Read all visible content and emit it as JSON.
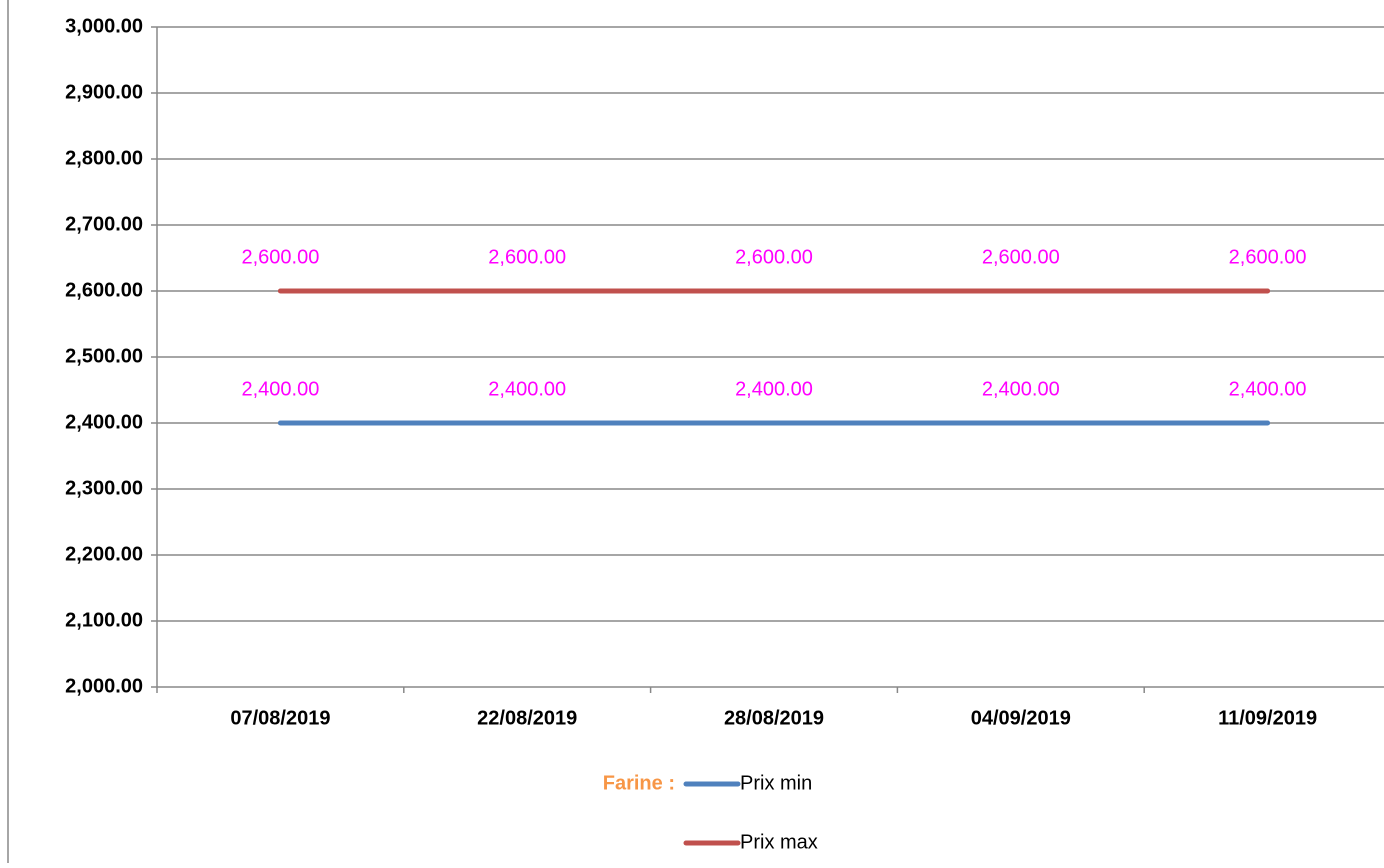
{
  "chart_data": {
    "type": "line",
    "categories": [
      "07/08/2019",
      "22/08/2019",
      "28/08/2019",
      "04/09/2019",
      "11/09/2019"
    ],
    "series": [
      {
        "name": "Prix min",
        "color": "#4f81bd",
        "values": [
          2400,
          2400,
          2400,
          2400,
          2400
        ],
        "value_labels": [
          "2,400.00",
          "2,400.00",
          "2,400.00",
          "2,400.00",
          "2,400.00"
        ]
      },
      {
        "name": "Prix max",
        "color": "#c0504d",
        "values": [
          2600,
          2600,
          2600,
          2600,
          2600
        ],
        "value_labels": [
          "2,600.00",
          "2,600.00",
          "2,600.00",
          "2,600.00",
          "2,600.00"
        ]
      }
    ],
    "value_label_color": "#ff00ff",
    "legend_title": "Farine :",
    "legend_title_color": "#f79646",
    "ylim": [
      2000,
      3000
    ],
    "yticks": [
      {
        "value": 2000,
        "label": "2,000.00"
      },
      {
        "value": 2100,
        "label": "2,100.00"
      },
      {
        "value": 2200,
        "label": "2,200.00"
      },
      {
        "value": 2300,
        "label": "2,300.00"
      },
      {
        "value": 2400,
        "label": "2,400.00"
      },
      {
        "value": 2500,
        "label": "2,500.00"
      },
      {
        "value": 2600,
        "label": "2,600.00"
      },
      {
        "value": 2700,
        "label": "2,700.00"
      },
      {
        "value": 2800,
        "label": "2,800.00"
      },
      {
        "value": 2900,
        "label": "2,900.00"
      },
      {
        "value": 3000,
        "label": "3,000.00"
      }
    ],
    "grid": true
  }
}
